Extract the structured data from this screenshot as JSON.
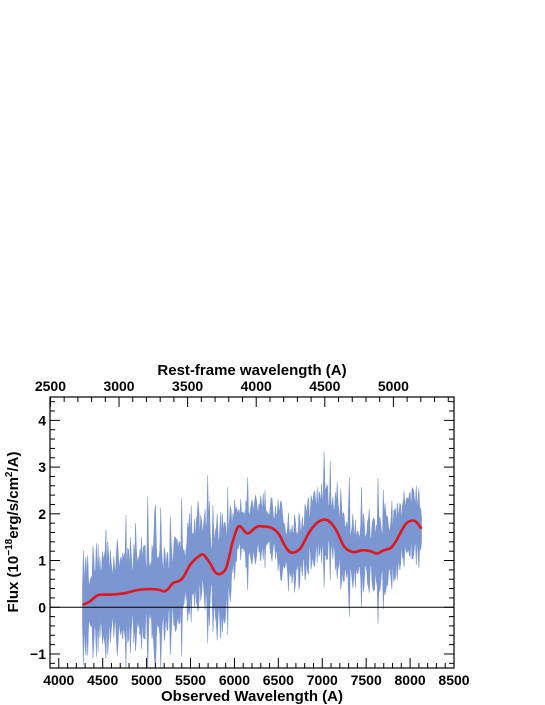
{
  "chart_data": {
    "type": "line",
    "x_axis": {
      "label": "Observed Wavelength (A)",
      "range": [
        3900,
        8500
      ],
      "ticks": [
        4000,
        4500,
        5000,
        5500,
        6000,
        6500,
        7000,
        7500,
        8000,
        8500
      ],
      "tick_labels": [
        "4000",
        "4500",
        "5000",
        "5500",
        "6000",
        "6500",
        "7000",
        "7500",
        "8000",
        "8500"
      ]
    },
    "top_axis": {
      "label": "Rest-frame wavelength (A)",
      "ticks": [
        2500,
        3000,
        3500,
        4000,
        4500,
        5000
      ],
      "tick_labels": [
        "2500",
        "3000",
        "3500",
        "4000",
        "4500",
        "5000"
      ],
      "observed_at_rest_2500": 3905,
      "observed_per_rest_unit": 1.562
    },
    "y_axis": {
      "label_main": "Flux (10",
      "label_exp1": "−18",
      "label_mid": "erg/s/cm",
      "label_exp2": "2",
      "label_end": "/A)",
      "range": [
        -1.3,
        4.5
      ],
      "ticks": [
        -1,
        0,
        1,
        2,
        3,
        4
      ],
      "tick_labels": [
        "−1",
        "0",
        "1",
        "2",
        "3",
        "4"
      ]
    },
    "zero_line": 0,
    "series": [
      {
        "style": "filled noisy spectrum",
        "color": "#7b96d0",
        "x_start": 4270,
        "x_end": 8130,
        "points": 390,
        "min_y": -1.3,
        "max_y": 3.7
      },
      {
        "style": "smooth model",
        "color": "#e0161e",
        "x": [
          4270,
          4350,
          4450,
          4600,
          4750,
          4900,
          5050,
          5150,
          5200,
          5250,
          5300,
          5400,
          5500,
          5600,
          5650,
          5720,
          5800,
          5900,
          5980,
          6050,
          6150,
          6250,
          6320,
          6420,
          6500,
          6580,
          6650,
          6750,
          6850,
          6950,
          7050,
          7150,
          7250,
          7350,
          7450,
          7550,
          7620,
          7700,
          7780,
          7850,
          7950,
          8050,
          8130
        ],
        "y": [
          0.05,
          0.12,
          0.26,
          0.27,
          0.3,
          0.37,
          0.39,
          0.37,
          0.34,
          0.4,
          0.52,
          0.6,
          0.92,
          1.1,
          1.12,
          0.95,
          0.72,
          0.82,
          1.4,
          1.73,
          1.58,
          1.72,
          1.73,
          1.7,
          1.58,
          1.3,
          1.17,
          1.26,
          1.6,
          1.82,
          1.87,
          1.68,
          1.3,
          1.18,
          1.22,
          1.2,
          1.15,
          1.22,
          1.27,
          1.45,
          1.78,
          1.85,
          1.68
        ]
      }
    ]
  }
}
